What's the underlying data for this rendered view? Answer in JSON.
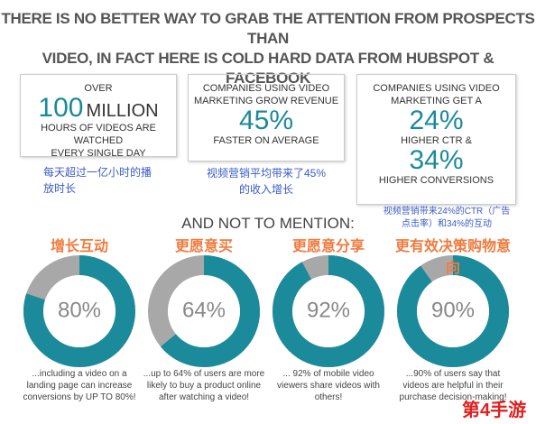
{
  "title_lines": [
    "THERE IS NO BETTER WAY TO GRAB THE ATTENTION FROM PROSPECTS THAN",
    "VIDEO, IN FACT HERE IS COLD HARD DATA FROM HUBSPOT & FACEBOOK"
  ],
  "boxes": [
    {
      "lines": [
        "OVER",
        "100",
        "MILLION",
        "HOURS OF VIDEOS ARE WATCHED",
        "EVERY SINGLE DAY"
      ],
      "note": "每天超过一亿小时的播放时长"
    },
    {
      "lines": [
        "COMPANIES USING VIDEO",
        "MARKETING GROW REVENUE",
        "45%",
        "FASTER ON AVERAGE"
      ],
      "note": "视频营销平均带来了45%的收入增长"
    },
    {
      "lines": [
        "COMPANIES USING VIDEO",
        "MARKETING GET A",
        "24%",
        "HIGHER CTR &",
        "34%",
        "HIGHER CONVERSIONS"
      ],
      "note": "视频营销带来24%的CTR（广告点击率）和34%的互动"
    }
  ],
  "subheading": "AND NOT TO MENTION:",
  "donuts": [
    {
      "heading": "增长互动",
      "value": 80,
      "value_label": "80%",
      "caption": "...including a video on a landing page can increase conversions by UP TO 80%!"
    },
    {
      "heading": "更愿意买",
      "value": 64,
      "value_label": "64%",
      "caption": "...up to 64% of users are more likely to buy a product online after watching a video!"
    },
    {
      "heading": "更愿意分享",
      "value": 92,
      "value_label": "92%",
      "caption": "... 92% of mobile video viewers share videos with others!"
    },
    {
      "heading": "更有效决策购物意向",
      "value": 90,
      "value_label": "90%",
      "caption": "...90% of users say that videos are helpful in their purchase decision-making!"
    }
  ],
  "watermark": "第4手游"
}
